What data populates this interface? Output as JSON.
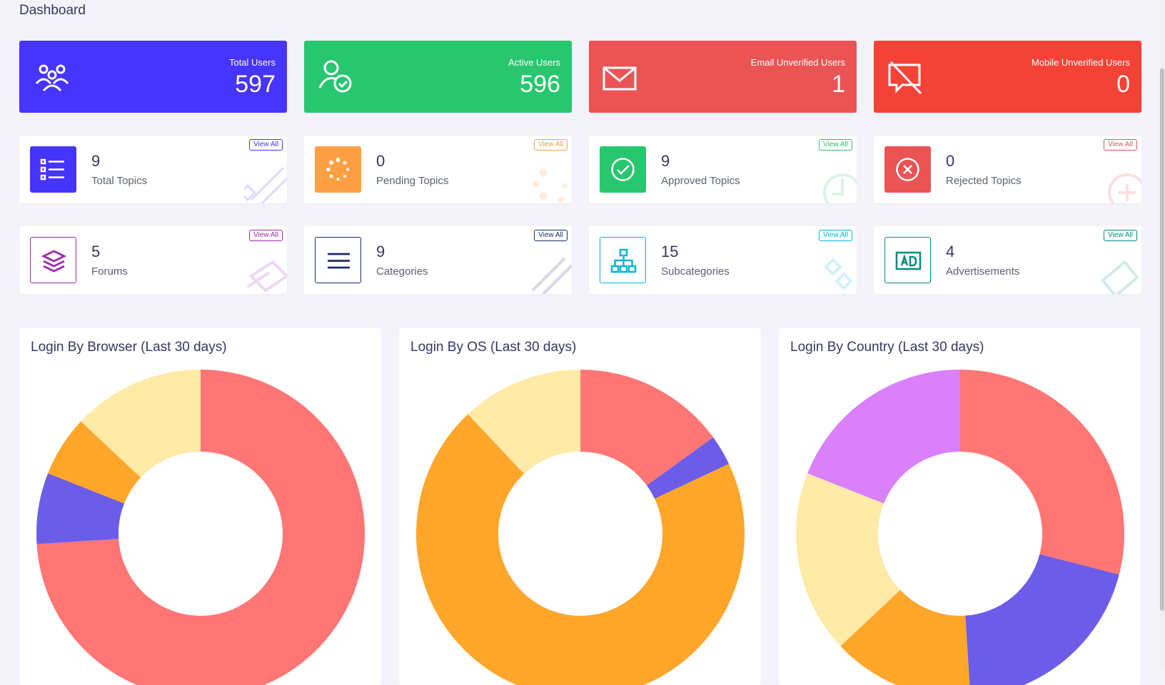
{
  "page": {
    "title": "Dashboard"
  },
  "stats": [
    {
      "label": "Total Users",
      "value": "597",
      "color": "#4634ff",
      "icon": "users-group-icon"
    },
    {
      "label": "Active Users",
      "value": "596",
      "color": "#28c76f",
      "icon": "user-check-icon"
    },
    {
      "label": "Email Unverified Users",
      "value": "1",
      "color": "#ea5455",
      "icon": "envelope-icon"
    },
    {
      "label": "Mobile Unverified Users",
      "value": "0",
      "color": "#f44336",
      "icon": "mobile-off-icon"
    }
  ],
  "widgets": [
    {
      "value": "9",
      "label": "Total Topics",
      "view_all": "View All",
      "color": "#4634ff",
      "icon": "list-icon"
    },
    {
      "value": "0",
      "label": "Pending Topics",
      "view_all": "View All",
      "color": "#ff9f43",
      "icon": "spinner-icon"
    },
    {
      "value": "9",
      "label": "Approved Topics",
      "view_all": "View All",
      "color": "#28c76f",
      "icon": "check-circle-icon"
    },
    {
      "value": "0",
      "label": "Rejected Topics",
      "view_all": "View All",
      "color": "#ea5455",
      "icon": "x-circle-icon"
    },
    {
      "value": "5",
      "label": "Forums",
      "view_all": "View All",
      "color": "#9c27b0",
      "icon": "layers-icon"
    },
    {
      "value": "9",
      "label": "Categories",
      "view_all": "View All",
      "color": "#1e2b6f",
      "icon": "menu-lines-icon"
    },
    {
      "value": "15",
      "label": "Subcategories",
      "view_all": "View All",
      "color": "#00b8d4",
      "icon": "sitemap-icon"
    },
    {
      "value": "4",
      "label": "Advertisements",
      "view_all": "View All",
      "color": "#008c7a",
      "icon": "ad-icon"
    }
  ],
  "chart_data": [
    {
      "type": "pie",
      "title": "Login By Browser (Last 30 days)",
      "values": [
        62,
        12,
        7,
        6,
        13
      ],
      "colors": [
        "#ff7675",
        "#ff7675",
        "#6c5ce7",
        "#ffa62b",
        "#ffeaa7"
      ]
    },
    {
      "type": "pie",
      "title": "Login By OS (Last 30 days)",
      "values": [
        15,
        3,
        70,
        12
      ],
      "colors": [
        "#ff7675",
        "#6c5ce7",
        "#ffa62b",
        "#ffeaa7"
      ]
    },
    {
      "type": "pie",
      "title": "Login By Country (Last 30 days)",
      "values": [
        29,
        20,
        14,
        18,
        19
      ],
      "colors": [
        "#ff7675",
        "#6c5ce7",
        "#ffa62b",
        "#ffeaa7",
        "#d980fa"
      ]
    }
  ]
}
